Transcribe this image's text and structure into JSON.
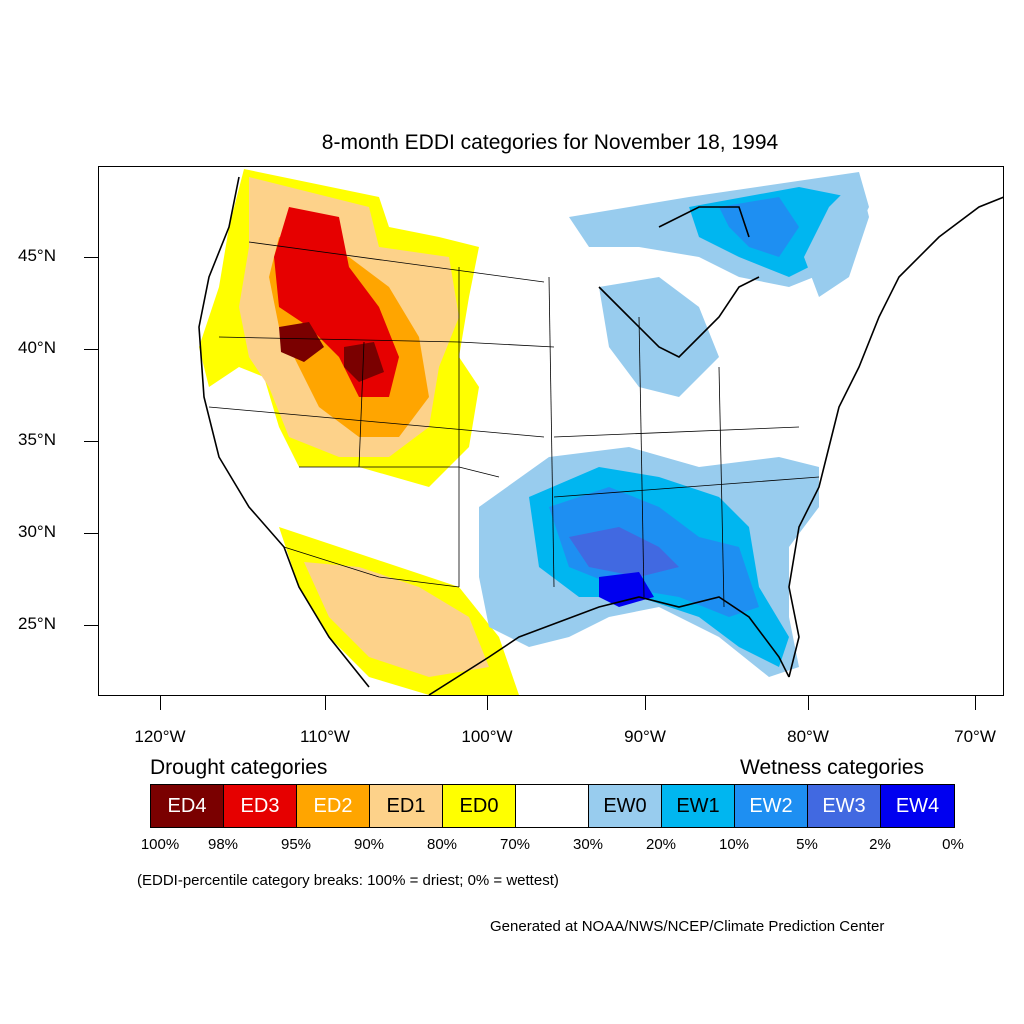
{
  "title": "8-month EDDI categories for November 18, 1994",
  "y_axis_labels": [
    "45°N",
    "40°N",
    "35°N",
    "30°N",
    "25°N"
  ],
  "x_axis_labels": [
    "120°W",
    "110°W",
    "100°W",
    "90°W",
    "80°W",
    "70°W"
  ],
  "legend": {
    "drought_heading": "Drought categories",
    "wetness_heading": "Wetness categories",
    "categories": [
      {
        "label": "ED4",
        "color": "#7a0000",
        "text_color": "#ffffff"
      },
      {
        "label": "ED3",
        "color": "#e60000",
        "text_color": "#ffffff"
      },
      {
        "label": "ED2",
        "color": "#ffa500",
        "text_color": "#ffffff"
      },
      {
        "label": "ED1",
        "color": "#fdd28a",
        "text_color": "#000000"
      },
      {
        "label": "ED0",
        "color": "#ffff00",
        "text_color": "#000000"
      },
      {
        "label": "",
        "color": "#ffffff",
        "text_color": "#000000"
      },
      {
        "label": "EW0",
        "color": "#98ccee",
        "text_color": "#000000"
      },
      {
        "label": "EW1",
        "color": "#00b6f0",
        "text_color": "#000000"
      },
      {
        "label": "EW2",
        "color": "#1e8ff2",
        "text_color": "#ffffff"
      },
      {
        "label": "EW3",
        "color": "#4169e1",
        "text_color": "#ffffff"
      },
      {
        "label": "EW4",
        "color": "#0000f0",
        "text_color": "#ffffff"
      }
    ],
    "percentiles": [
      "100%",
      "98%",
      "95%",
      "90%",
      "80%",
      "70%",
      "30%",
      "20%",
      "10%",
      "5%",
      "2%",
      "0%"
    ]
  },
  "note": "(EDDI-percentile category breaks: 100% = driest; 0% = wettest)",
  "credit": "Generated at NOAA/NWS/NCEP/Climate Prediction Center"
}
